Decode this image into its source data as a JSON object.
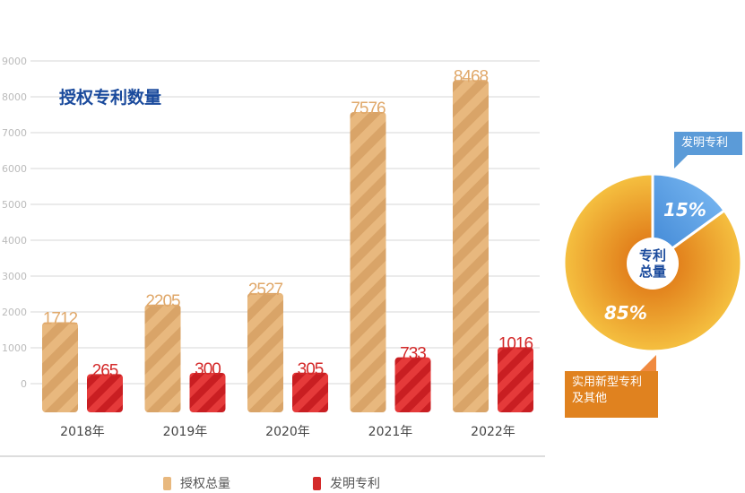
{
  "chart_data": {
    "type": "bar",
    "title": "授权专利数量",
    "categories": [
      "2018年",
      "2019年",
      "2020年",
      "2021年",
      "2022年"
    ],
    "series": [
      {
        "name": "授权总量",
        "values": [
          1712,
          2205,
          2527,
          7576,
          8468
        ],
        "color": "#e0a86a"
      },
      {
        "name": "发明专利",
        "values": [
          265,
          300,
          305,
          733,
          1016
        ],
        "color": "#d42a2a"
      }
    ],
    "yticks": [
      0,
      1000,
      2000,
      3000,
      4000,
      5000,
      6000,
      7000,
      8000,
      9000
    ],
    "ylim": [
      0,
      9000
    ],
    "grid": true,
    "legend": "bottom"
  },
  "pie": {
    "center_label": [
      "专利",
      "总量"
    ],
    "slices": [
      {
        "label": "发明专利",
        "value": 15,
        "text": "15%",
        "color": "#5ea3e8"
      },
      {
        "label_lines": [
          "实用新型专利",
          "及其他"
        ],
        "value": 85,
        "text": "85%",
        "color": "#f0a830"
      }
    ]
  }
}
